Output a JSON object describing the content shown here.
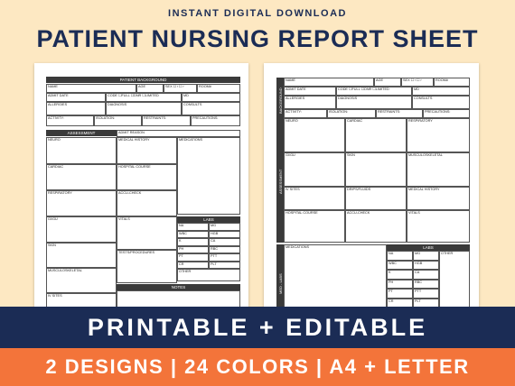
{
  "header": {
    "tagline": "INSTANT DIGITAL DOWNLOAD",
    "title": "PATIENT NURSING REPORT SHEET"
  },
  "sheet1": {
    "background_title": "PATIENT BACKGROUND",
    "fields": {
      "name": "NAME",
      "age": "AGE",
      "sex": "SEX",
      "room": "ROOM#",
      "admit_date": "ADMIT DATE",
      "code": "CODE",
      "full": "FULL",
      "dnr": "DNR",
      "limited": "LIMITED",
      "md": "MD",
      "allergies": "ALLERGIES",
      "diagnosis": "DIAGNOSIS",
      "consults": "CONSULTS",
      "activity": "ACTIVITY:",
      "isolation": "ISOLATION:",
      "restraints": "RESTRAINTS:",
      "precautions": "PRECAUTIONS:"
    },
    "assessment_title": "ASSESSMENT",
    "admit_reason": "ADMIT REASON",
    "sections": {
      "neuro": "NEURO",
      "medical_history": "MEDICAL HISTORY",
      "medications": "MEDICATIONS",
      "cardiac": "CARDIAC",
      "hospital_course": "HOSPITAL COURSE",
      "respiratory": "RESPIRATORY",
      "accu_check": "ACCU-CHECK",
      "gi_gu": "GI/GU",
      "vitals": "VITALS",
      "skin": "SKIN",
      "tests": "TESTS/PROCEDURES",
      "musculo": "MUSCULOSKELETAL",
      "iv_sites": "IV SITES"
    },
    "labs_title": "LABS",
    "labs": [
      [
        "NA",
        "MG"
      ],
      [
        "WBC",
        "HGB"
      ],
      [
        "K",
        "CA"
      ],
      [
        "PH",
        "RBC"
      ],
      [
        "PT",
        "PTT"
      ],
      [
        "CR",
        "PLT"
      ]
    ],
    "labs_other": "OTHER",
    "notes_title": "NOTES"
  },
  "sheet2": {
    "side_labels": {
      "background": "BACKGROUND",
      "assessment": "ASSESSMENT",
      "med_labs": "MED - LABS"
    },
    "fields": {
      "name": "NAME",
      "age": "AGE",
      "sex": "SEX",
      "room": "ROOM#",
      "admit_date": "ADMIT DATE",
      "code": "CODE",
      "full": "FULL",
      "dnr": "DNR",
      "limited": "LIMITED",
      "md": "MD",
      "allergies": "ALLERGIES",
      "diagnosis": "DIAGNOSIS",
      "consults": "CONSULTS",
      "activity": "ACTIVITY:",
      "isolation": "ISOLATION:",
      "restraints": "RESTRAINTS:",
      "precautions": "PRECAUTIONS:"
    },
    "sections": {
      "neuro": "NEURO",
      "cardiac": "CARDIAC",
      "respiratory": "RESPIRATORY",
      "gi_gu": "GI/GU",
      "skin": "SKIN",
      "musculo": "MUSCULOSKELETAL",
      "iv_sites": "IV SITES",
      "drips": "DRIPS/FLUIDS",
      "medical_history": "MEDICAL HISTORY",
      "hospital_course": "HOSPITAL COURSE",
      "accu_check": "ACCU-CHECK",
      "vitals": "VITALS",
      "medications": "MEDICATIONS"
    },
    "labs_title": "LABS",
    "labs": [
      [
        "NA",
        "MG"
      ],
      [
        "WBC",
        "HGB"
      ],
      [
        "K",
        "CA"
      ],
      [
        "PH",
        "RBC"
      ],
      [
        "PT",
        "PTT"
      ],
      [
        "CR",
        "PLT"
      ]
    ],
    "labs_other": "OTHER"
  },
  "banner": {
    "line1": "PRINTABLE + EDITABLE",
    "line2": "2 DESIGNS | 24 COLORS | A4 + LETTER"
  }
}
